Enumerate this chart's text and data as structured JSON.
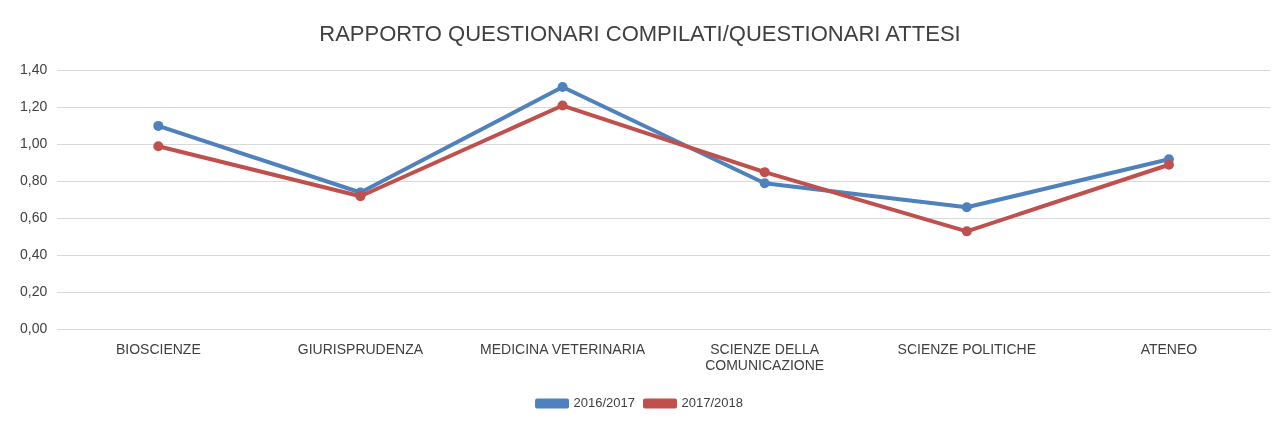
{
  "chart_data": {
    "type": "line",
    "title": "RAPPORTO QUESTIONARI COMPILATI/QUESTIONARI ATTESI",
    "categories": [
      "BIOSCIENZE",
      "GIURISPRUDENZA",
      "MEDICINA VETERINARIA",
      "SCIENZE DELLA COMUNICAZIONE",
      "SCIENZE POLITICHE",
      "ATENEO"
    ],
    "series": [
      {
        "name": "2016/2017",
        "color": "#4f81bd",
        "values": [
          1.1,
          0.74,
          1.31,
          0.79,
          0.66,
          0.92
        ]
      },
      {
        "name": "2017/2018",
        "color": "#c0504d",
        "values": [
          0.99,
          0.72,
          1.21,
          0.85,
          0.53,
          0.89
        ]
      }
    ],
    "ylim": [
      0,
      1.4
    ],
    "yticks": [
      {
        "value": 0,
        "label": "0,00"
      },
      {
        "value": 0.2,
        "label": "0,20"
      },
      {
        "value": 0.4,
        "label": "0,40"
      },
      {
        "value": 0.6,
        "label": "0,60"
      },
      {
        "value": 0.8,
        "label": "0,80"
      },
      {
        "value": 1,
        "label": "1,00"
      },
      {
        "value": 1.2,
        "label": "1,20"
      },
      {
        "value": 1.4,
        "label": "1,40"
      }
    ],
    "grid": "y",
    "legend": "bottom",
    "marker": "circle",
    "line_style": "solid"
  }
}
